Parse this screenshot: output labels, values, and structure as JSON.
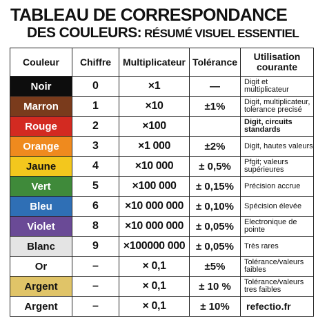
{
  "title": {
    "line1": "TABLEAU DE CORRESPONDANCE",
    "line2_main": "DES COULEURS:",
    "line2_sub": " RÉSUMÉ VISUEL ESSENTIEL"
  },
  "table": {
    "headers": {
      "color": "Couleur",
      "digit": "Chiffre",
      "multiplier": "Multiplicateur",
      "tolerance": "Tolérance",
      "usage": "Utilisation courante"
    },
    "rows": [
      {
        "color": "Noir",
        "bg": "#0d0d0d",
        "fg": "#ffffff",
        "digit": "0",
        "multiplier": "×1",
        "tolerance": "—",
        "usage": "Digit et multiplicateur"
      },
      {
        "color": "Marron",
        "bg": "#7a3b1c",
        "fg": "#ffffff",
        "digit": "1",
        "multiplier": "×10",
        "tolerance": "±1%",
        "usage": "Digit, multiplicateur, tolerance precisé"
      },
      {
        "color": "Rouge",
        "bg": "#d32a21",
        "fg": "#ffffff",
        "digit": "2",
        "multiplier": "×100",
        "tolerance": "",
        "usage": "Digit, circuits standards"
      },
      {
        "color": "Orange",
        "bg": "#ef8a1e",
        "fg": "#ffffff",
        "digit": "3",
        "multiplier": "×1 000",
        "tolerance": "±2%",
        "usage": "Digit, hautes valeurs"
      },
      {
        "color": "Jaune",
        "bg": "#f3c71d",
        "fg": "#111111",
        "digit": "4",
        "multiplier": "×10 000",
        "tolerance": "± 0,5%",
        "usage": "Pfgit; valeurs supérieures"
      },
      {
        "color": "Vert",
        "bg": "#3f8a3a",
        "fg": "#ffffff",
        "digit": "5",
        "multiplier": "×100 000",
        "tolerance": "± 0,15%",
        "usage": "Précision accrue"
      },
      {
        "color": "Bleu",
        "bg": "#2f6fb5",
        "fg": "#ffffff",
        "digit": "6",
        "multiplier": "×10 000 000",
        "tolerance": "± 0,10%",
        "usage": "Spécision élevée"
      },
      {
        "color": "Violet",
        "bg": "#6a4a96",
        "fg": "#ffffff",
        "digit": "8",
        "multiplier": "×10 000 000",
        "tolerance": "± 0,05%",
        "usage": "Electronique de pointe"
      },
      {
        "color": "Blanc",
        "bg": "#e4e4e4",
        "fg": "#111111",
        "digit": "9",
        "multiplier": "×100000 000",
        "tolerance": "± 0,05%",
        "usage": "Très rares"
      },
      {
        "color": "Or",
        "bg": "#ffffff",
        "fg": "#111111",
        "digit": "–",
        "multiplier": "× 0,1",
        "tolerance": "±5%",
        "usage": "Tolérance/valeurs faibles"
      },
      {
        "color": "Argent",
        "bg": "#e0c468",
        "fg": "#111111",
        "digit": "–",
        "multiplier": "× 0,1",
        "tolerance": "± 10 %",
        "usage": "Tolérance/valeurs tres faibles"
      },
      {
        "color": "Argent",
        "bg": "#ffffff",
        "fg": "#111111",
        "digit": "–",
        "multiplier": "× 0,1",
        "tolerance": "± 10%",
        "usage": "refectio.fr"
      }
    ]
  }
}
